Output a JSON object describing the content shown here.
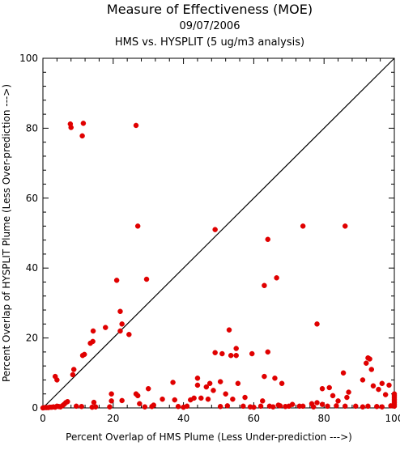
{
  "chart_data": {
    "type": "scatter",
    "title": "Measure of Effectiveness (MOE)",
    "subtitle": "09/07/2006",
    "subtitle2": "HMS vs. HYSPLIT  (5 ug/m3 analysis)",
    "xlabel": "Percent Overlap of HMS Plume (Less Under-prediction --->)",
    "ylabel": "Percent Overlap of HYSPLIT Plume (Less Over-prediction --->)",
    "xlim": [
      0,
      100
    ],
    "ylim": [
      0,
      100
    ],
    "xticks": [
      "0",
      "20",
      "40",
      "60",
      "80",
      "100"
    ],
    "yticks": [
      "0",
      "20",
      "40",
      "60",
      "80",
      "100"
    ],
    "grid": false,
    "point_color": "#e00000",
    "reference_line": {
      "x": [
        0,
        100
      ],
      "y": [
        0,
        100
      ]
    },
    "points": [
      [
        7.8,
        81.2
      ],
      [
        8.0,
        80.2
      ],
      [
        11.5,
        81.4
      ],
      [
        11.2,
        77.8
      ],
      [
        26.5,
        80.8
      ],
      [
        27.0,
        52.0
      ],
      [
        49.0,
        51.0
      ],
      [
        74.0,
        52.0
      ],
      [
        86.0,
        52.0
      ],
      [
        64.0,
        48.2
      ],
      [
        66.5,
        37.2
      ],
      [
        63.0,
        35.0
      ],
      [
        21.0,
        36.5
      ],
      [
        29.5,
        36.8
      ],
      [
        78.0,
        24.0
      ],
      [
        17.8,
        23.0
      ],
      [
        22.0,
        27.6
      ],
      [
        22.5,
        24.0
      ],
      [
        22.0,
        22.0
      ],
      [
        24.5,
        21.0
      ],
      [
        14.3,
        22.0
      ],
      [
        13.5,
        18.5
      ],
      [
        14.2,
        19.0
      ],
      [
        11.3,
        15.0
      ],
      [
        11.8,
        15.3
      ],
      [
        8.8,
        11.0
      ],
      [
        8.5,
        9.5
      ],
      [
        3.5,
        9.0
      ],
      [
        4.0,
        8.0
      ],
      [
        53.0,
        22.3
      ],
      [
        55.0,
        17.0
      ],
      [
        55.0,
        15.0
      ],
      [
        51.0,
        15.5
      ],
      [
        53.5,
        15.0
      ],
      [
        49.0,
        15.8
      ],
      [
        59.5,
        15.5
      ],
      [
        63.0,
        9.0
      ],
      [
        64.0,
        16.0
      ],
      [
        66.0,
        8.5
      ],
      [
        68.0,
        7.0
      ],
      [
        47.5,
        7.0
      ],
      [
        46.5,
        6.0
      ],
      [
        50.5,
        7.5
      ],
      [
        48.5,
        5.0
      ],
      [
        52.0,
        4.0
      ],
      [
        55.5,
        7.0
      ],
      [
        44.0,
        8.5
      ],
      [
        44.0,
        6.5
      ],
      [
        37.0,
        7.3
      ],
      [
        30.0,
        5.5
      ],
      [
        57.5,
        3.0
      ],
      [
        59.0,
        0.3
      ],
      [
        62.5,
        2.0
      ],
      [
        62.0,
        0.5
      ],
      [
        65.5,
        0.3
      ],
      [
        67.0,
        0.8
      ],
      [
        70.0,
        0.5
      ],
      [
        71.0,
        1.0
      ],
      [
        74.0,
        0.5
      ],
      [
        76.5,
        1.2
      ],
      [
        78.0,
        1.5
      ],
      [
        79.5,
        5.5
      ],
      [
        81.5,
        5.8
      ],
      [
        82.5,
        3.5
      ],
      [
        84.0,
        2.0
      ],
      [
        85.5,
        10.0
      ],
      [
        86.5,
        3.0
      ],
      [
        87.0,
        4.5
      ],
      [
        91.0,
        8.0
      ],
      [
        92.0,
        12.8
      ],
      [
        92.5,
        14.3
      ],
      [
        93.0,
        14.0
      ],
      [
        93.5,
        11.0
      ],
      [
        94.0,
        6.3
      ],
      [
        95.5,
        5.3
      ],
      [
        96.5,
        7.0
      ],
      [
        97.5,
        3.8
      ],
      [
        98.5,
        6.5
      ],
      [
        99.0,
        0.6
      ],
      [
        100.0,
        0.5
      ],
      [
        100.0,
        1.0
      ],
      [
        100.0,
        1.5
      ],
      [
        100.0,
        2.0
      ],
      [
        100.0,
        2.5
      ],
      [
        100.0,
        3.0
      ],
      [
        100.0,
        3.5
      ],
      [
        100.0,
        4.0
      ],
      [
        96.5,
        0.3
      ],
      [
        95.0,
        0.4
      ],
      [
        92.5,
        0.5
      ],
      [
        91.0,
        0.3
      ],
      [
        89.0,
        0.5
      ],
      [
        86.0,
        0.5
      ],
      [
        83.5,
        0.6
      ],
      [
        81.0,
        0.5
      ],
      [
        79.5,
        1.0
      ],
      [
        77.0,
        0.3
      ],
      [
        73.0,
        0.5
      ],
      [
        69.0,
        0.4
      ],
      [
        67.5,
        0.6
      ],
      [
        64.5,
        0.5
      ],
      [
        60.0,
        0.2
      ],
      [
        57.0,
        0.5
      ],
      [
        54.0,
        2.5
      ],
      [
        52.5,
        0.6
      ],
      [
        50.5,
        0.4
      ],
      [
        47.0,
        2.5
      ],
      [
        45.0,
        2.8
      ],
      [
        43.0,
        2.8
      ],
      [
        42.0,
        2.3
      ],
      [
        41.0,
        0.5
      ],
      [
        40.0,
        0.2
      ],
      [
        38.5,
        0.4
      ],
      [
        37.5,
        2.3
      ],
      [
        34.0,
        2.5
      ],
      [
        31.5,
        0.8
      ],
      [
        31.0,
        0.4
      ],
      [
        29.0,
        0.3
      ],
      [
        27.5,
        1.2
      ],
      [
        27.0,
        3.5
      ],
      [
        26.5,
        4.0
      ],
      [
        22.5,
        2.1
      ],
      [
        19.5,
        2.0
      ],
      [
        19.5,
        4.0
      ],
      [
        19.0,
        0.3
      ],
      [
        15.0,
        0.3
      ],
      [
        14.5,
        1.6
      ],
      [
        14.0,
        0.2
      ],
      [
        11.0,
        0.4
      ],
      [
        9.5,
        0.5
      ],
      [
        7.0,
        1.8
      ],
      [
        6.5,
        1.5
      ],
      [
        6.0,
        1.0
      ],
      [
        5.5,
        0.6
      ],
      [
        5.0,
        0.3
      ],
      [
        4.5,
        0.4
      ],
      [
        4.0,
        0.5
      ],
      [
        3.5,
        0.2
      ],
      [
        3.0,
        0.3
      ],
      [
        2.5,
        0.2
      ],
      [
        2.0,
        0.2
      ],
      [
        1.5,
        0.1
      ],
      [
        1.0,
        0.1
      ],
      [
        0.5,
        0.1
      ],
      [
        0.0,
        0.0
      ]
    ]
  }
}
